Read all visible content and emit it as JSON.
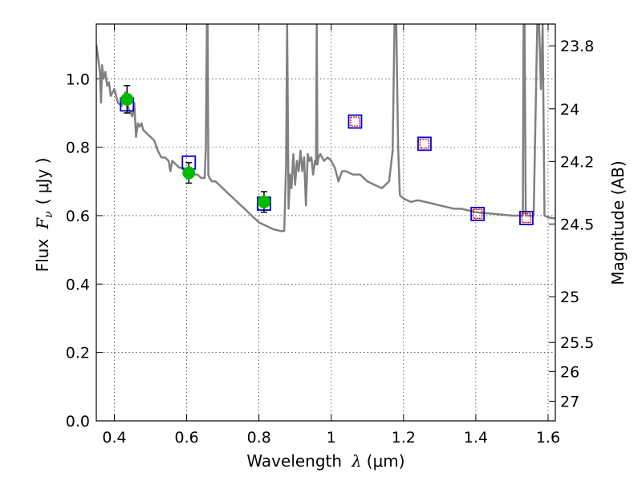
{
  "chart_data": {
    "type": "line",
    "xlabel": {
      "prefix": "Wavelength",
      "symbol": "λ",
      "unit": "(μm)"
    },
    "ylabel": {
      "prefix": "Flux",
      "symbol": "F",
      "subscript": "ν",
      "unit": "( μJy )"
    },
    "ylabel_right": "Magnitude (AB)",
    "xlim": [
      0.35,
      1.62
    ],
    "ylim": [
      0.0,
      1.16
    ],
    "grid": true,
    "x_ticks": [
      {
        "value": 0.4,
        "label": "0.4"
      },
      {
        "value": 0.6,
        "label": "0.6"
      },
      {
        "value": 0.8,
        "label": "0.8"
      },
      {
        "value": 1.0,
        "label": "1"
      },
      {
        "value": 1.2,
        "label": "1.2"
      },
      {
        "value": 1.4,
        "label": "1.4"
      },
      {
        "value": 1.6,
        "label": "1.6"
      }
    ],
    "y_ticks": [
      {
        "value": 0.0,
        "label": "0.0"
      },
      {
        "value": 0.2,
        "label": "0.2"
      },
      {
        "value": 0.4,
        "label": "0.4"
      },
      {
        "value": 0.6,
        "label": "0.6"
      },
      {
        "value": 0.8,
        "label": "0.8"
      },
      {
        "value": 1.0,
        "label": "1.0"
      }
    ],
    "right_ticks": [
      {
        "value": 23.8,
        "label": "23.8"
      },
      {
        "value": 24.0,
        "label": "24"
      },
      {
        "value": 24.2,
        "label": "24.2"
      },
      {
        "value": 24.5,
        "label": "24.5"
      },
      {
        "value": 25.0,
        "label": "25"
      },
      {
        "value": 25.5,
        "label": "25.5"
      },
      {
        "value": 26.0,
        "label": "26"
      },
      {
        "value": 27.0,
        "label": "27"
      }
    ],
    "colors": {
      "spectrum": "#808080",
      "observed_fill": "#00bb00",
      "model_box": "#0000dd",
      "upper_limit": "#dd0000",
      "error_bar": "#000000"
    },
    "series": [
      {
        "kind": "spectrum_line",
        "x": [
          0.35,
          0.355,
          0.36,
          0.363,
          0.366,
          0.37,
          0.375,
          0.38,
          0.385,
          0.39,
          0.395,
          0.4,
          0.41,
          0.42,
          0.43,
          0.44,
          0.45,
          0.455,
          0.46,
          0.465,
          0.47,
          0.475,
          0.48,
          0.49,
          0.5,
          0.51,
          0.52,
          0.53,
          0.54,
          0.55,
          0.555,
          0.56,
          0.57,
          0.58,
          0.59,
          0.6,
          0.61,
          0.62,
          0.63,
          0.64,
          0.65,
          0.653,
          0.656,
          0.658,
          0.66,
          0.663,
          0.67,
          0.68,
          0.69,
          0.7,
          0.72,
          0.74,
          0.76,
          0.78,
          0.8,
          0.82,
          0.84,
          0.86,
          0.87,
          0.875,
          0.878,
          0.882,
          0.886,
          0.89,
          0.895,
          0.9,
          0.905,
          0.91,
          0.915,
          0.92,
          0.925,
          0.93,
          0.935,
          0.94,
          0.945,
          0.95,
          0.955,
          0.958,
          0.96,
          0.962,
          0.965,
          0.97,
          0.98,
          0.99,
          1.0,
          1.01,
          1.02,
          1.03,
          1.04,
          1.06,
          1.08,
          1.1,
          1.12,
          1.14,
          1.16,
          1.17,
          1.175,
          1.18,
          1.185,
          1.19,
          1.2,
          1.22,
          1.24,
          1.26,
          1.28,
          1.3,
          1.32,
          1.34,
          1.36,
          1.38,
          1.4,
          1.45,
          1.5,
          1.53,
          1.532,
          1.535,
          1.538,
          1.54,
          1.55,
          1.56,
          1.57,
          1.575,
          1.58,
          1.585,
          1.59,
          1.6,
          1.61,
          1.62
        ],
        "y": [
          1.1,
          1.06,
          1.02,
          0.93,
          1.04,
          1.0,
          1.02,
          0.98,
          0.99,
          0.95,
          0.96,
          0.97,
          0.93,
          0.92,
          0.96,
          0.91,
          0.89,
          0.93,
          0.83,
          0.87,
          0.86,
          0.87,
          0.85,
          0.84,
          0.83,
          0.82,
          0.79,
          0.77,
          0.77,
          0.76,
          0.73,
          0.76,
          0.75,
          0.74,
          0.74,
          0.73,
          0.74,
          0.72,
          0.72,
          0.71,
          0.71,
          0.8,
          1.16,
          1.16,
          0.72,
          0.71,
          0.7,
          0.7,
          0.69,
          0.68,
          0.66,
          0.64,
          0.62,
          0.6,
          0.58,
          0.57,
          0.56,
          0.555,
          0.555,
          0.75,
          1.16,
          0.62,
          0.72,
          0.68,
          0.78,
          0.69,
          0.76,
          0.73,
          0.79,
          0.73,
          0.77,
          0.63,
          0.78,
          0.76,
          0.77,
          0.72,
          0.76,
          0.75,
          1.16,
          0.75,
          0.77,
          0.78,
          0.76,
          0.77,
          0.76,
          0.74,
          0.7,
          0.73,
          0.73,
          0.72,
          0.72,
          0.7,
          0.69,
          0.68,
          0.7,
          0.79,
          1.16,
          1.16,
          0.8,
          0.66,
          0.65,
          0.64,
          0.645,
          0.64,
          0.635,
          0.63,
          0.625,
          0.62,
          0.62,
          0.615,
          0.61,
          0.605,
          0.6,
          0.6,
          1.16,
          1.16,
          0.6,
          0.6,
          0.6,
          0.6,
          1.16,
          1.16,
          0.97,
          1.16,
          0.6,
          0.595,
          0.593,
          0.592
        ]
      },
      {
        "kind": "observed",
        "x": [
          0.435,
          0.606,
          0.814
        ],
        "y": [
          0.94,
          0.725,
          0.64
        ],
        "yerr": [
          0.04,
          0.03,
          0.03
        ]
      },
      {
        "kind": "model_squares",
        "x": [
          0.435,
          0.606,
          0.814,
          1.066,
          1.258,
          1.405,
          1.54
        ],
        "y": [
          0.925,
          0.755,
          0.635,
          0.875,
          0.81,
          0.605,
          0.593
        ]
      },
      {
        "kind": "upper_limit_squares",
        "x": [
          1.066,
          1.258,
          1.405,
          1.54
        ],
        "y": [
          0.875,
          0.81,
          0.605,
          0.593
        ]
      }
    ]
  }
}
